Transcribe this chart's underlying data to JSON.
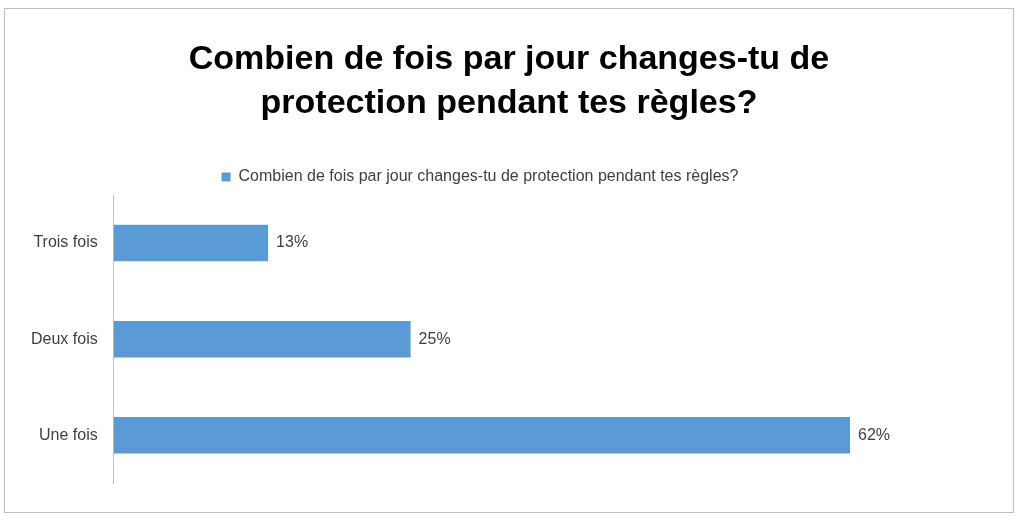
{
  "chart_data": {
    "type": "bar",
    "orientation": "horizontal",
    "title": "Combien de fois par jour changes-tu de protection pendant tes règles?",
    "categories": [
      "Trois fois",
      "Deux fois",
      "Une fois"
    ],
    "series": [
      {
        "name": "Combien de fois par jour changes-tu de protection pendant tes règles?",
        "color": "#5b9bd5",
        "values": [
          13,
          25,
          62
        ],
        "value_labels": [
          "13%",
          "25%",
          "62%"
        ]
      }
    ],
    "tick_labels": "y",
    "grid": false,
    "legend": "top"
  }
}
